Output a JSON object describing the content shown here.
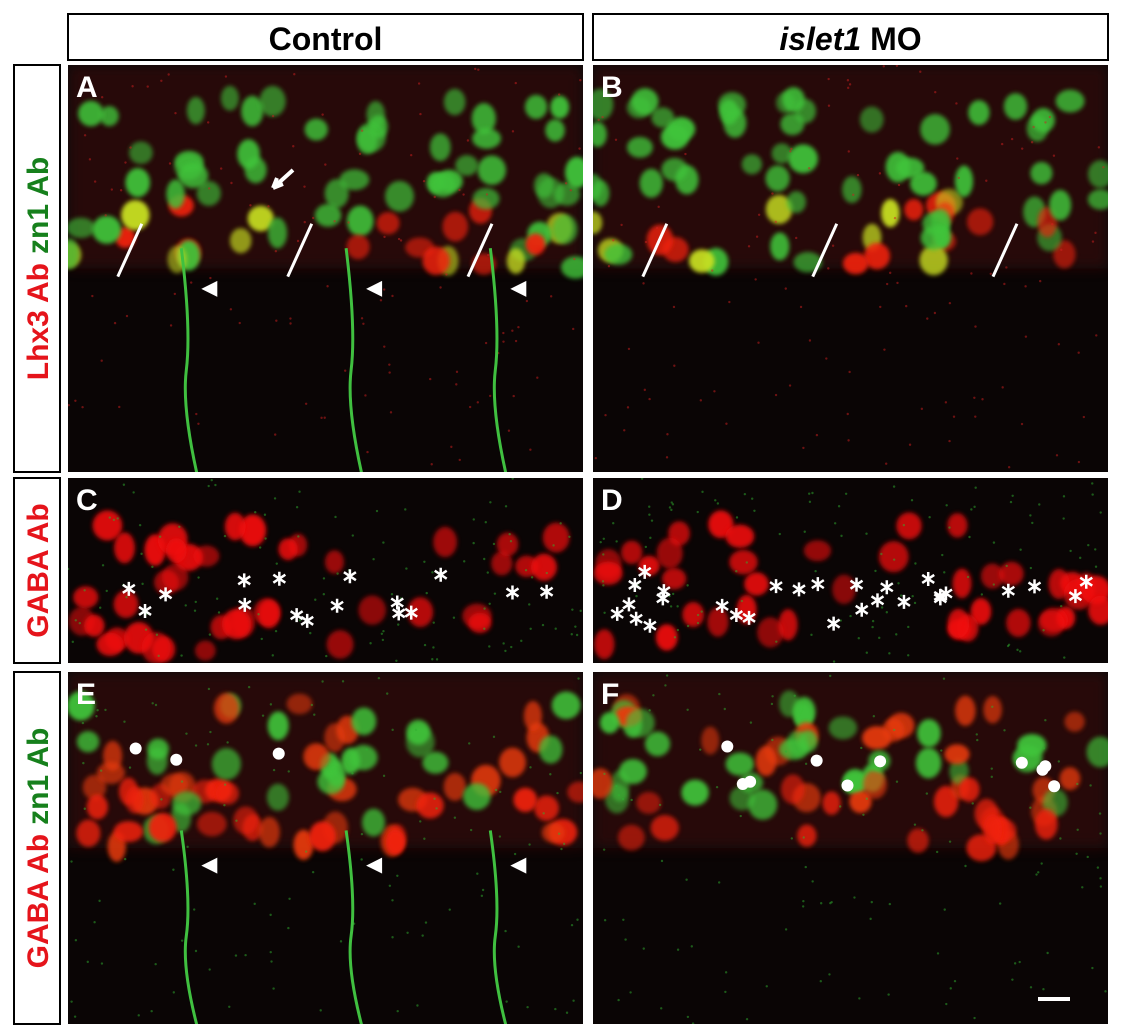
{
  "column_headers": [
    {
      "parts": [
        {
          "text": "Control",
          "italic": false
        }
      ]
    },
    {
      "parts": [
        {
          "text": "islet1",
          "italic": true
        },
        {
          "text": "MO",
          "italic": false
        }
      ]
    }
  ],
  "row_labels": [
    {
      "parts": [
        {
          "text": "Lhx3 Ab",
          "color": "#e5141b"
        },
        {
          "text": "zn1 Ab",
          "color": "#16801c"
        }
      ]
    },
    {
      "parts": [
        {
          "text": "GABA Ab",
          "color": "#e5141b"
        }
      ]
    },
    {
      "parts": [
        {
          "text": "GABA Ab",
          "color": "#e5141b"
        },
        {
          "text": "zn1 Ab",
          "color": "#16801c"
        }
      ]
    }
  ],
  "panels": [
    {
      "letter": "A"
    },
    {
      "letter": "B"
    },
    {
      "letter": "C"
    },
    {
      "letter": "D"
    },
    {
      "letter": "E"
    },
    {
      "letter": "F"
    }
  ]
}
